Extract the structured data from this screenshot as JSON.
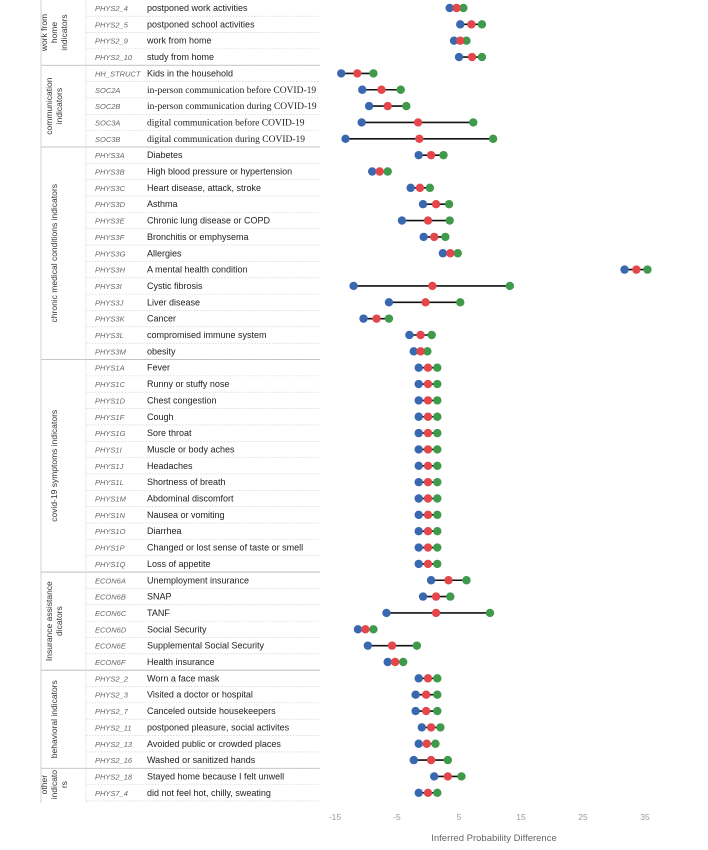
{
  "chart_data": {
    "type": "dot-range",
    "xlabel": "Inferred Probability Difference",
    "xlim": [
      -16,
      37
    ],
    "ticks": [
      -15,
      -5,
      5,
      15,
      25,
      35
    ],
    "grid": false,
    "colors": {
      "blue": "#3a68b0",
      "red": "#e4474b",
      "green": "#3f9a4b",
      "line": "#111111"
    },
    "groups": [
      {
        "label": [
          "work from",
          "home",
          "indicators"
        ],
        "rows": [
          {
            "code": "PHYS2_4",
            "label": "postponed work activities",
            "values": [
              3.5,
              4.6,
              5.7
            ]
          },
          {
            "code": "PHYS2_5",
            "label": "postponed school activities",
            "values": [
              5.2,
              7.0,
              8.7
            ]
          },
          {
            "code": "PHYS2_9",
            "label": "work from home",
            "values": [
              4.2,
              5.2,
              6.2
            ]
          },
          {
            "code": "PHYS2_10",
            "label": "study from home",
            "values": [
              5.0,
              7.1,
              8.7
            ]
          }
        ]
      },
      {
        "label": [
          "communication",
          "indicators"
        ],
        "rows": [
          {
            "code": "HH_STRUCT",
            "label": "Kids in the household",
            "values": [
              -14.0,
              -11.4,
              -8.8
            ]
          },
          {
            "code": "SOC2A",
            "label": "in-person communication before COVID-19",
            "values": [
              -10.6,
              -7.5,
              -4.4
            ]
          },
          {
            "code": "SOC2B",
            "label": "in-person communication during COVID-19",
            "values": [
              -9.5,
              -6.5,
              -3.5
            ]
          },
          {
            "code": "SOC3A",
            "label": "digital communication before COVID-19",
            "values": [
              -10.7,
              -1.6,
              7.3
            ]
          },
          {
            "code": "SOC3B",
            "label": "digital communication during COVID-19",
            "values": [
              -13.3,
              -1.4,
              10.5
            ]
          }
        ]
      },
      {
        "label": [
          "chronic medical conditions indicators"
        ],
        "rows": [
          {
            "code": "PHYS3A",
            "label": "Diabetes",
            "values": [
              -1.5,
              0.5,
              2.5
            ]
          },
          {
            "code": "PHYS3B",
            "label": "High blood pressure or hypertension",
            "values": [
              -9.0,
              -7.8,
              -6.5
            ]
          },
          {
            "code": "PHYS3C",
            "label": "Heart disease, attack, stroke",
            "values": [
              -2.8,
              -1.3,
              0.3
            ]
          },
          {
            "code": "PHYS3D",
            "label": "Asthma",
            "values": [
              -0.8,
              1.3,
              3.4
            ]
          },
          {
            "code": "PHYS3E",
            "label": "Chronic lung disease or COPD",
            "values": [
              -4.2,
              0.0,
              3.5
            ]
          },
          {
            "code": "PHYS3F",
            "label": "Bronchitis or emphysema",
            "values": [
              -0.7,
              1.0,
              2.8
            ]
          },
          {
            "code": "PHYS3G",
            "label": "Allergies",
            "values": [
              2.4,
              3.6,
              4.8
            ]
          },
          {
            "code": "PHYS3H",
            "label": "A mental health condition",
            "values": [
              31.7,
              33.6,
              35.4
            ]
          },
          {
            "code": "PHYS3I",
            "label": "Cystic fibrosis",
            "values": [
              -12.0,
              0.7,
              13.2
            ]
          },
          {
            "code": "PHYS3J",
            "label": "Liver disease",
            "values": [
              -6.3,
              -0.4,
              5.2
            ]
          },
          {
            "code": "PHYS3K",
            "label": "Cancer",
            "values": [
              -10.4,
              -8.3,
              -6.3
            ]
          },
          {
            "code": "PHYS3L",
            "label": "compromised immune system",
            "values": [
              -3.0,
              -1.2,
              0.6
            ]
          },
          {
            "code": "PHYS3M",
            "label": "obesity",
            "values": [
              -2.3,
              -1.2,
              -0.1
            ]
          }
        ]
      },
      {
        "label": [
          "covid-19 symptoms indicators"
        ],
        "rows": [
          {
            "code": "PHYS1A",
            "label": "Fever",
            "values": [
              -1.5,
              0.0,
              1.5
            ]
          },
          {
            "code": "PHYS1C",
            "label": "Runny or stuffy nose",
            "values": [
              -1.5,
              0.0,
              1.5
            ]
          },
          {
            "code": "PHYS1D",
            "label": "Chest congestion",
            "values": [
              -1.5,
              0.0,
              1.5
            ]
          },
          {
            "code": "PHYS1F",
            "label": "Cough",
            "values": [
              -1.5,
              0.0,
              1.5
            ]
          },
          {
            "code": "PHYS1G",
            "label": "Sore throat",
            "values": [
              -1.5,
              0.0,
              1.5
            ]
          },
          {
            "code": "PHYS1I",
            "label": "Muscle or body aches",
            "values": [
              -1.5,
              0.0,
              1.5
            ]
          },
          {
            "code": "PHYS1J",
            "label": "Headaches",
            "values": [
              -1.5,
              0.0,
              1.5
            ]
          },
          {
            "code": "PHYS1L",
            "label": "Shortness of breath",
            "values": [
              -1.5,
              0.0,
              1.5
            ]
          },
          {
            "code": "PHYS1M",
            "label": "Abdominal discomfort",
            "values": [
              -1.5,
              0.0,
              1.5
            ]
          },
          {
            "code": "PHYS1N",
            "label": "Nausea or vomiting",
            "values": [
              -1.5,
              0.0,
              1.5
            ]
          },
          {
            "code": "PHYS1O",
            "label": "Diarrhea",
            "values": [
              -1.5,
              0.0,
              1.5
            ]
          },
          {
            "code": "PHYS1P",
            "label": "Changed or lost sense of taste or smell",
            "values": [
              -1.5,
              0.0,
              1.5
            ]
          },
          {
            "code": "PHYS1Q",
            "label": "Loss of appetite",
            "values": [
              -1.5,
              0.0,
              1.5
            ]
          }
        ]
      },
      {
        "label": [
          "Insurance assistance",
          "dicators"
        ],
        "rows": [
          {
            "code": "ECON6A",
            "label": "Unemployment insurance",
            "values": [
              0.5,
              3.3,
              6.2
            ]
          },
          {
            "code": "ECON6B",
            "label": "SNAP",
            "values": [
              -0.8,
              1.3,
              3.6
            ]
          },
          {
            "code": "ECON6C",
            "label": "TANF",
            "values": [
              -6.7,
              1.3,
              10.0
            ]
          },
          {
            "code": "ECON6D",
            "label": "Social Security",
            "values": [
              -11.3,
              -10.1,
              -8.8
            ]
          },
          {
            "code": "ECON6E",
            "label": "Supplemental Social Security",
            "values": [
              -9.7,
              -5.8,
              -1.8
            ]
          },
          {
            "code": "ECON6F",
            "label": "Health insurance",
            "values": [
              -6.5,
              -5.3,
              -4.0
            ]
          }
        ]
      },
      {
        "label": [
          "behavioral indicators"
        ],
        "rows": [
          {
            "code": "PHYS2_2",
            "label": "Worn a face mask",
            "values": [
              -1.5,
              0.0,
              1.5
            ]
          },
          {
            "code": "PHYS2_3",
            "label": "Visited a doctor or hospital",
            "values": [
              -2.0,
              -0.3,
              1.5
            ]
          },
          {
            "code": "PHYS2_7",
            "label": "Canceled outside housekeepers",
            "values": [
              -2.0,
              -0.3,
              1.5
            ]
          },
          {
            "code": "PHYS2_11",
            "label": "postponed pleasure, social activites",
            "values": [
              -1.0,
              0.5,
              2.0
            ]
          },
          {
            "code": "PHYS2_13",
            "label": "Avoided public or crowded places",
            "values": [
              -1.5,
              -0.2,
              1.2
            ]
          },
          {
            "code": "PHYS2_16",
            "label": "Washed or sanitized hands",
            "values": [
              -2.3,
              0.5,
              3.2
            ]
          }
        ]
      },
      {
        "label": [
          "other",
          "indicato",
          "rs"
        ],
        "rows": [
          {
            "code": "PHYS2_18",
            "label": "Stayed home because I felt unwell",
            "values": [
              1.0,
              3.2,
              5.4
            ]
          },
          {
            "code": "PHYS7_4",
            "label": "did not feel hot, chilly, sweating",
            "values": [
              -1.5,
              0.0,
              1.5
            ]
          }
        ]
      }
    ]
  }
}
